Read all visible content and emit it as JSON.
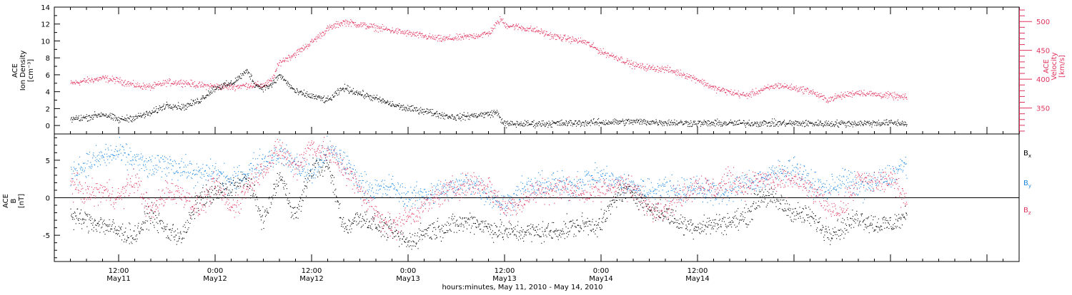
{
  "chart_data": [
    {
      "type": "scatter",
      "panel": "top",
      "x_unit": "hours since 2010-05-11 00:00 UT",
      "left_axis": {
        "label_lines": [
          "ACE",
          "Ion Density",
          "[cm⁻³]"
        ],
        "ylim": [
          -1,
          14
        ],
        "ticks": [
          0,
          2,
          4,
          6,
          8,
          10,
          12,
          14
        ],
        "color": "#000000"
      },
      "right_axis": {
        "label_lines": [
          "ACE",
          "Velocity",
          "[km/s]"
        ],
        "ylim": [
          305,
          525
        ],
        "ticks": [
          350,
          400,
          450,
          500
        ],
        "color": "#e0335e"
      },
      "series": [
        {
          "axis": "left",
          "color": "#000000",
          "x": [
            6,
            8,
            10,
            12,
            14,
            16,
            18,
            20,
            22,
            24,
            26,
            28,
            29,
            30,
            31,
            32,
            34,
            36,
            38,
            40,
            42,
            44,
            46,
            48,
            50,
            52,
            54,
            56,
            58,
            59,
            59.5,
            60,
            64,
            68,
            72,
            76,
            80,
            84,
            88,
            92,
            96,
            100,
            104,
            108,
            110
          ],
          "y": [
            0.8,
            1.0,
            1.4,
            0.7,
            1.0,
            1.5,
            2.5,
            2.2,
            3.0,
            4.5,
            5.0,
            6.5,
            4.8,
            4.5,
            4.8,
            6.0,
            4.0,
            3.5,
            3.0,
            4.5,
            3.8,
            3.2,
            2.5,
            2.0,
            1.8,
            1.3,
            1.0,
            1.2,
            1.4,
            1.6,
            0.8,
            0.2,
            0.25,
            0.3,
            0.4,
            0.5,
            0.4,
            0.3,
            0.3,
            0.3,
            0.3,
            0.25,
            0.3,
            0.35,
            0.3
          ],
          "scatter": 0.35
        },
        {
          "axis": "right",
          "color": "#e0335e",
          "x": [
            6,
            8,
            10,
            12,
            14,
            16,
            18,
            20,
            22,
            24,
            26,
            28,
            30,
            31,
            32,
            34,
            36,
            38,
            40,
            42,
            44,
            46,
            48,
            50,
            52,
            54,
            56,
            58,
            59.5,
            60,
            62,
            64,
            66,
            68,
            70,
            72,
            74,
            76,
            78,
            80,
            82,
            84,
            86,
            88,
            90,
            92,
            94,
            96,
            98,
            100,
            102,
            104,
            106,
            108,
            110
          ],
          "y": [
            393,
            398,
            402,
            398,
            390,
            387,
            395,
            395,
            390,
            388,
            387,
            390,
            390,
            398,
            430,
            445,
            465,
            488,
            500,
            495,
            490,
            485,
            480,
            475,
            470,
            472,
            475,
            480,
            505,
            495,
            490,
            485,
            475,
            470,
            465,
            448,
            438,
            425,
            420,
            418,
            410,
            400,
            385,
            378,
            372,
            382,
            390,
            385,
            380,
            365,
            372,
            378,
            374,
            372,
            368
          ],
          "scatter": 5
        }
      ]
    },
    {
      "type": "scatter",
      "panel": "bottom",
      "x_unit": "hours since 2010-05-11 00:00 UT",
      "left_axis": {
        "label_lines": [
          "ACE",
          "B",
          "[nT]"
        ],
        "ylim": [
          -8.5,
          8.5
        ],
        "ticks": [
          -5,
          0,
          5
        ],
        "color": "#000000"
      },
      "legend": {
        "placement": "right",
        "entries": [
          "Bₓ",
          "Bᵧ",
          "B_z"
        ]
      },
      "series": [
        {
          "name": "Bₓ",
          "color": "#000000",
          "x": [
            6,
            8,
            10,
            12,
            14,
            16,
            18,
            20,
            22,
            24,
            26,
            28,
            30,
            32,
            34,
            36,
            38,
            40,
            42,
            44,
            46,
            48,
            50,
            52,
            54,
            56,
            58,
            60,
            62,
            64,
            66,
            68,
            70,
            72,
            74,
            76,
            78,
            80,
            82,
            84,
            86,
            88,
            90,
            92,
            94,
            96,
            98,
            100,
            102,
            104,
            106,
            108,
            110
          ],
          "y": [
            -2.5,
            -3.0,
            -3.5,
            -4.5,
            -5.0,
            -2.0,
            -4.5,
            -5.0,
            0.0,
            0.5,
            1.5,
            2.5,
            -3.0,
            3.0,
            -2.5,
            4.0,
            4.5,
            -4.0,
            -2.5,
            -3.5,
            -4.5,
            -6.0,
            -4.5,
            -4.0,
            -3.5,
            -3.0,
            -4.0,
            -4.5,
            -4.5,
            -4.5,
            -4.5,
            -4.0,
            -3.5,
            -3.5,
            0.5,
            1.0,
            -1.5,
            -2.0,
            -3.5,
            -3.8,
            -3.5,
            -3.2,
            -2.5,
            0.5,
            -0.5,
            -2.0,
            -2.5,
            -4.5,
            -4.0,
            -2.5,
            -3.5,
            -3.5,
            -2.5
          ],
          "scatter": 1.2
        },
        {
          "name": "Bᵧ",
          "color": "#1e88e5",
          "x": [
            6,
            8,
            10,
            12,
            14,
            16,
            18,
            20,
            22,
            24,
            26,
            28,
            30,
            32,
            34,
            36,
            38,
            40,
            42,
            44,
            46,
            48,
            50,
            52,
            54,
            56,
            58,
            60,
            62,
            64,
            66,
            68,
            70,
            72,
            74,
            76,
            78,
            80,
            82,
            84,
            86,
            88,
            90,
            92,
            94,
            96,
            98,
            100,
            102,
            104,
            106,
            108,
            110
          ],
          "y": [
            3.5,
            4.5,
            5.5,
            6.0,
            5.0,
            4.0,
            4.5,
            4.0,
            3.0,
            3.5,
            2.0,
            3.5,
            5.0,
            6.0,
            4.5,
            3.0,
            6.5,
            5.0,
            2.0,
            1.0,
            1.5,
            0.0,
            0.5,
            1.0,
            1.5,
            2.0,
            0.5,
            -1.0,
            1.0,
            1.5,
            2.0,
            1.5,
            2.5,
            3.0,
            2.0,
            1.5,
            1.0,
            1.5,
            1.0,
            1.5,
            0.5,
            1.0,
            2.0,
            2.5,
            3.5,
            4.0,
            2.0,
            1.0,
            2.5,
            1.5,
            2.0,
            3.0,
            4.5
          ],
          "scatter": 1.4
        },
        {
          "name": "B_z",
          "color": "#e0335e",
          "x": [
            6,
            8,
            10,
            12,
            14,
            16,
            18,
            20,
            22,
            24,
            26,
            28,
            30,
            32,
            34,
            36,
            38,
            40,
            42,
            44,
            46,
            48,
            50,
            52,
            54,
            56,
            58,
            60,
            62,
            64,
            66,
            68,
            70,
            72,
            74,
            76,
            78,
            80,
            82,
            84,
            86,
            88,
            90,
            92,
            94,
            96,
            98,
            100,
            102,
            104,
            106,
            108,
            110
          ],
          "y": [
            2.0,
            0.5,
            1.0,
            0.0,
            2.5,
            -2.0,
            1.0,
            0.5,
            -1.5,
            2.0,
            -1.5,
            1.5,
            4.0,
            6.5,
            4.0,
            7.0,
            6.0,
            4.0,
            1.0,
            -2.0,
            -4.0,
            -2.5,
            -1.0,
            0.5,
            1.5,
            2.0,
            1.5,
            -1.5,
            -0.5,
            1.0,
            1.0,
            1.5,
            0.5,
            1.0,
            2.0,
            1.0,
            -1.0,
            -1.5,
            0.5,
            2.0,
            1.0,
            2.5,
            1.5,
            2.5,
            2.0,
            2.5,
            1.0,
            -1.0,
            -1.5,
            2.5,
            2.0,
            2.5,
            0.0
          ],
          "scatter": 1.4
        }
      ]
    }
  ],
  "x_axis": {
    "xlim": [
      4,
      124
    ],
    "major_ticks": [
      12,
      24,
      36,
      48,
      60,
      72,
      84,
      96,
      108,
      120
    ],
    "tick_time_labels": [
      "12:00",
      "0:00",
      "12:00",
      "0:00",
      "12:00",
      "0:00",
      "12:00"
    ],
    "tick_time_hours": [
      12,
      24,
      36,
      48,
      60,
      72,
      84,
      96,
      108,
      120
    ],
    "labels": [
      {
        "hour": 12,
        "time": "12:00",
        "day": "May11"
      },
      {
        "hour": 24,
        "time": "0:00",
        "day": "May12"
      },
      {
        "hour": 36,
        "time": "12:00",
        "day": "May12"
      },
      {
        "hour": 48,
        "time": "0:00",
        "day": "May13"
      },
      {
        "hour": 60,
        "time": "12:00",
        "day": "May13"
      },
      {
        "hour": 72,
        "time": "0:00",
        "day": "May14"
      },
      {
        "hour": 84,
        "time": "12:00",
        "day": "May14"
      }
    ],
    "title": "hours:minutes, May 11, 2010 - May 14, 2010"
  }
}
